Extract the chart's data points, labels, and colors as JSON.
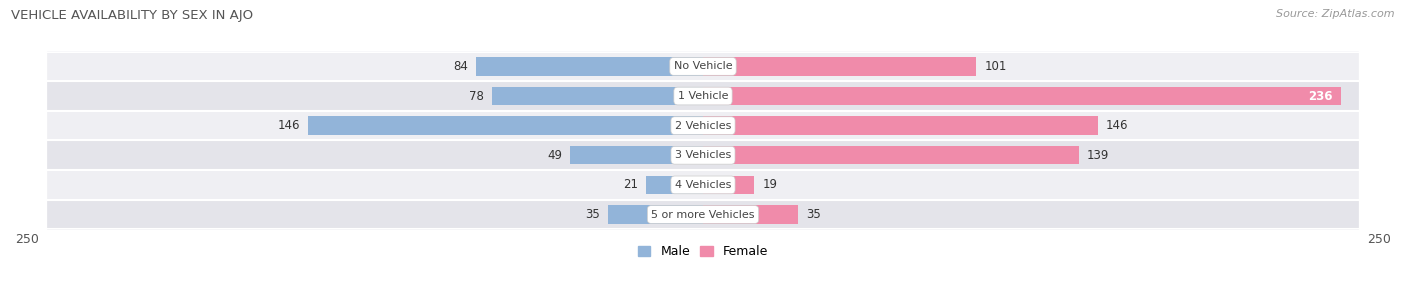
{
  "title": "VEHICLE AVAILABILITY BY SEX IN AJO",
  "source": "Source: ZipAtlas.com",
  "categories": [
    "No Vehicle",
    "1 Vehicle",
    "2 Vehicles",
    "3 Vehicles",
    "4 Vehicles",
    "5 or more Vehicles"
  ],
  "male_values": [
    84,
    78,
    146,
    49,
    21,
    35
  ],
  "female_values": [
    101,
    236,
    146,
    139,
    19,
    35
  ],
  "male_color": "#92b4d9",
  "female_color": "#f08baa",
  "row_bg_colors": [
    "#efeff3",
    "#e4e4ea"
  ],
  "axis_max": 250,
  "title_fontsize": 9.5,
  "source_fontsize": 8,
  "legend_fontsize": 9,
  "value_fontsize": 8.5,
  "category_fontsize": 8,
  "axis_label_fontsize": 9
}
